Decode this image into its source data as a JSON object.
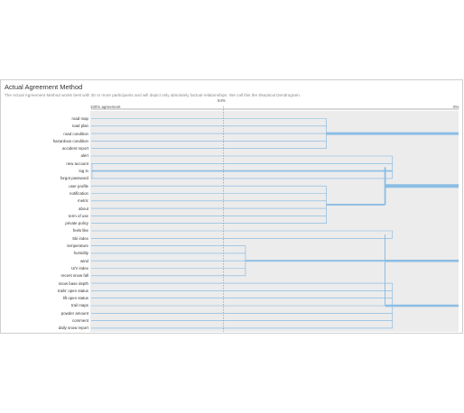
{
  "panel": {
    "title": "Actual Agreement Method",
    "subtitle": "The Actual Agreement Method works best with 30 or more participants and will depict only absolutely factual relationships. We call this the Skeptical Dendrogram."
  },
  "axis": {
    "left_label": "100% agreement",
    "marker_label": "64%",
    "right_label": "0%",
    "marker_value": 64
  },
  "items": [
    "road map",
    "road plan",
    "road condition",
    "hazardous condition",
    "accident report",
    "alert",
    "new account",
    "log in",
    "forgot password",
    "user profile",
    "notification",
    "metric",
    "about",
    "term of use",
    "private policy",
    "feels like",
    "Ski index",
    "temperature",
    "humidity",
    "wind",
    "U/V index",
    "recent snow fall",
    "snow base depth",
    "trails' open status",
    "lift open status",
    "trail maps",
    "powder amount",
    "comment",
    "daily snow report"
  ],
  "clusters": [
    {
      "rows": [
        0,
        4
      ],
      "join_pct": 36,
      "trunk_pct": 0,
      "weight": 3
    },
    {
      "rows": [
        5,
        14
      ],
      "join_pct": 18,
      "trunk_pct": 0,
      "weight": 4,
      "sub": [
        {
          "rows": [
            5,
            8
          ],
          "join_pct": 18,
          "inner": [
            6,
            8
          ],
          "inner_pct": 99.5
        },
        {
          "rows": [
            9,
            14
          ],
          "join_pct": 36
        }
      ]
    },
    {
      "rows": [
        15,
        28
      ],
      "join_pct": 18,
      "trunk_pct": 0,
      "weight": 3,
      "sub": [
        {
          "rows": [
            15,
            16
          ],
          "join_pct": 18
        },
        {
          "rows": [
            17,
            21
          ],
          "join_pct": 58
        },
        {
          "rows": [
            22,
            28
          ],
          "join_pct": 18
        }
      ]
    }
  ],
  "colors": {
    "line": "#7ab3e0",
    "thick": "#8bbde4",
    "marker": "#999999",
    "bg": "#ececec"
  }
}
